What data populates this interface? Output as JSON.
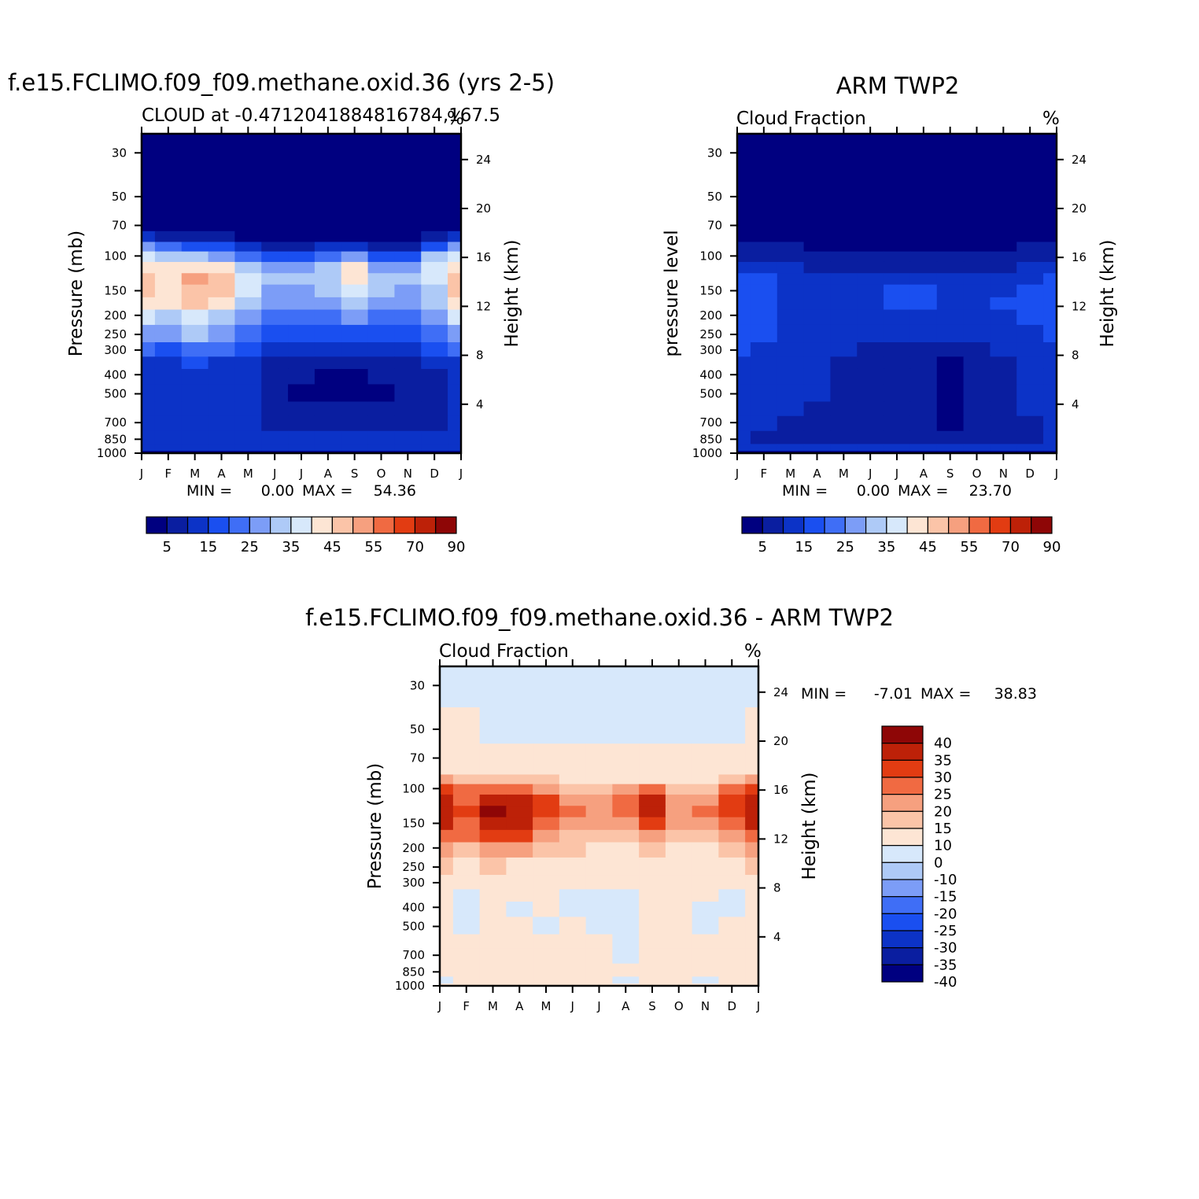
{
  "colors": {
    "abs_scale": [
      "#000080",
      "#0a1ea0",
      "#0c33c7",
      "#1a4ff0",
      "#3f6ef6",
      "#7c9df7",
      "#aecaf7",
      "#d7e8fb",
      "#fde5d4",
      "#fbc4a8",
      "#f6a07f",
      "#f06a42",
      "#e23c12",
      "#bd2108",
      "#8e0606"
    ],
    "diff_scale": [
      "#000080",
      "#0a1ea0",
      "#0c33c7",
      "#1a4ff0",
      "#3f6ef6",
      "#7c9df7",
      "#aecaf7",
      "#d7e8fb",
      "#fde5d4",
      "#fbc4a8",
      "#f6a07f",
      "#f06a42",
      "#e23c12",
      "#bd2108",
      "#8e0606"
    ]
  },
  "chart_data": [
    {
      "type": "heatmap",
      "title": "f.e15.FCLIMO.f09_f09.methane.oxid.36 (yrs 2-5)",
      "subtitle": "CLOUD at -0.4712041884816784,167.5",
      "units": "%",
      "ylabel": "Pressure (mb)",
      "y2label": "Height (km)",
      "months": [
        "J",
        "F",
        "M",
        "A",
        "M",
        "J",
        "J",
        "A",
        "S",
        "O",
        "N",
        "D",
        "J"
      ],
      "pressure_ticks": [
        "30",
        "50",
        "70",
        "100",
        "150",
        "200",
        "250",
        "300",
        "400",
        "500",
        "700",
        "850",
        "1000"
      ],
      "pressure_values": [
        30,
        50,
        70,
        100,
        150,
        200,
        250,
        300,
        400,
        500,
        700,
        850,
        1000
      ],
      "height_ticks": [
        "24",
        "20",
        "16",
        "12",
        "8",
        "4"
      ],
      "height_values": [
        24,
        20,
        16,
        12,
        8,
        4
      ],
      "ylim": [
        1000,
        24
      ],
      "stats": {
        "min_label": "MIN =",
        "min": "0.00",
        "max_label": "MAX =",
        "max": "54.36"
      },
      "levels": [
        5,
        10,
        15,
        20,
        25,
        30,
        35,
        40,
        45,
        50,
        55,
        60,
        70,
        80,
        90
      ],
      "colorbar_labels": [
        "5",
        "15",
        "25",
        "35",
        "45",
        "55",
        "70",
        "90"
      ],
      "levels_pressure": [
        30,
        50,
        70,
        80,
        90,
        100,
        115,
        130,
        150,
        175,
        200,
        250,
        300,
        350,
        400,
        500,
        600,
        700,
        850,
        950,
        1000
      ],
      "grid": [
        [
          0,
          0,
          0,
          0,
          0,
          0,
          0,
          0,
          0,
          0,
          0,
          0,
          0
        ],
        [
          0,
          0,
          0,
          0,
          0,
          0,
          0,
          0,
          0,
          0,
          0,
          0,
          0
        ],
        [
          2,
          1,
          1,
          1,
          1,
          0,
          0,
          0,
          0,
          0,
          0,
          1,
          2
        ],
        [
          12,
          6,
          5,
          5,
          3,
          2,
          2,
          2,
          3,
          2,
          2,
          6,
          12
        ],
        [
          28,
          20,
          18,
          16,
          12,
          9,
          9,
          10,
          12,
          9,
          9,
          18,
          28
        ],
        [
          38,
          33,
          32,
          28,
          22,
          18,
          19,
          22,
          28,
          19,
          18,
          30,
          38
        ],
        [
          44,
          40,
          42,
          40,
          33,
          27,
          28,
          32,
          40,
          28,
          27,
          36,
          44
        ],
        [
          48,
          44,
          50,
          48,
          38,
          30,
          30,
          33,
          44,
          31,
          30,
          36,
          48
        ],
        [
          46,
          42,
          48,
          45,
          36,
          29,
          28,
          30,
          36,
          30,
          28,
          34,
          46
        ],
        [
          44,
          40,
          46,
          42,
          33,
          27,
          26,
          27,
          30,
          28,
          26,
          32,
          44
        ],
        [
          36,
          34,
          38,
          34,
          28,
          24,
          23,
          24,
          26,
          24,
          23,
          28,
          36
        ],
        [
          28,
          26,
          30,
          27,
          22,
          18,
          17,
          18,
          19,
          18,
          17,
          22,
          28
        ],
        [
          20,
          19,
          22,
          20,
          17,
          13,
          12,
          12,
          13,
          12,
          12,
          16,
          20
        ],
        [
          14,
          14,
          15,
          14,
          12,
          9,
          8,
          8,
          9,
          8,
          8,
          11,
          14
        ],
        [
          12,
          11,
          12,
          11,
          10,
          8,
          5,
          3,
          4,
          6,
          7,
          9,
          12
        ],
        [
          11,
          10,
          11,
          11,
          10,
          7,
          4,
          3,
          4,
          3,
          6,
          9,
          11
        ],
        [
          11,
          10,
          11,
          10,
          10,
          8,
          6,
          6,
          7,
          7,
          7,
          9,
          11
        ],
        [
          11,
          10,
          11,
          10,
          10,
          9,
          8,
          8,
          8,
          8,
          8,
          9,
          11
        ],
        [
          12,
          12,
          12,
          11,
          11,
          10,
          10,
          10,
          10,
          10,
          10,
          11,
          12
        ],
        [
          13,
          13,
          13,
          13,
          13,
          13,
          13,
          13,
          13,
          13,
          13,
          13,
          13
        ],
        [
          4,
          4,
          4,
          4,
          4,
          4,
          4,
          4,
          4,
          4,
          4,
          4,
          4
        ]
      ]
    },
    {
      "type": "heatmap",
      "title": "ARM TWP2",
      "subtitle": "Cloud Fraction",
      "units": "%",
      "ylabel": "pressure level",
      "y2label": "Height (km)",
      "months": [
        "J",
        "F",
        "M",
        "A",
        "M",
        "J",
        "J",
        "A",
        "S",
        "O",
        "N",
        "D",
        "J"
      ],
      "pressure_ticks": [
        "30",
        "50",
        "70",
        "100",
        "150",
        "200",
        "250",
        "300",
        "400",
        "500",
        "700",
        "850",
        "1000"
      ],
      "pressure_values": [
        30,
        50,
        70,
        100,
        150,
        200,
        250,
        300,
        400,
        500,
        700,
        850,
        1000
      ],
      "height_ticks": [
        "24",
        "20",
        "16",
        "12",
        "8",
        "4"
      ],
      "height_values": [
        24,
        20,
        16,
        12,
        8,
        4
      ],
      "ylim": [
        1000,
        24
      ],
      "stats": {
        "min_label": "MIN =",
        "min": "0.00",
        "max_label": "MAX =",
        "max": "23.70"
      },
      "levels": [
        5,
        10,
        15,
        20,
        25,
        30,
        35,
        40,
        45,
        50,
        55,
        60,
        70,
        80,
        90
      ],
      "colorbar_labels": [
        "5",
        "15",
        "25",
        "35",
        "45",
        "55",
        "70",
        "90"
      ],
      "levels_pressure": [
        30,
        50,
        70,
        80,
        90,
        100,
        115,
        130,
        150,
        175,
        200,
        250,
        300,
        350,
        400,
        500,
        600,
        700,
        850,
        950,
        1000
      ],
      "grid": [
        [
          0,
          0,
          0,
          0,
          0,
          0,
          0,
          0,
          0,
          0,
          0,
          0,
          0
        ],
        [
          0,
          0,
          0,
          0,
          0,
          0,
          0,
          0,
          0,
          0,
          0,
          0,
          0
        ],
        [
          2,
          1,
          1,
          1,
          1,
          1,
          1,
          1,
          1,
          1,
          1,
          1,
          2
        ],
        [
          4,
          3,
          3,
          3,
          3,
          3,
          3,
          3,
          3,
          3,
          3,
          3,
          4
        ],
        [
          6,
          5,
          5,
          4,
          4,
          4,
          4,
          4,
          4,
          4,
          4,
          5,
          6
        ],
        [
          8,
          7,
          7,
          6,
          5,
          5,
          5,
          5,
          5,
          5,
          6,
          7,
          8
        ],
        [
          13,
          13,
          11,
          9,
          8,
          7,
          8,
          8,
          7,
          8,
          9,
          11,
          13
        ],
        [
          16,
          16,
          13,
          12,
          12,
          12,
          13,
          14,
          10,
          12,
          13,
          14,
          16
        ],
        [
          18,
          19,
          14,
          13,
          14,
          14,
          17,
          15,
          11,
          13,
          14,
          15,
          17
        ],
        [
          18,
          19,
          14,
          13,
          13,
          14,
          17,
          15,
          11,
          13,
          15,
          17,
          17
        ],
        [
          17,
          17,
          14,
          13,
          12,
          12,
          14,
          13,
          11,
          12,
          14,
          16,
          16
        ],
        [
          15,
          15,
          13,
          12,
          11,
          10,
          11,
          11,
          10,
          10,
          12,
          14,
          15
        ],
        [
          15,
          14,
          13,
          12,
          10,
          9,
          9,
          9,
          7,
          8,
          10,
          13,
          14
        ],
        [
          14,
          13,
          12,
          11,
          9,
          8,
          8,
          8,
          4,
          6,
          9,
          12,
          13
        ],
        [
          14,
          13,
          12,
          10,
          9,
          8,
          8,
          7,
          3,
          5,
          8,
          11,
          13
        ],
        [
          13,
          12,
          11,
          10,
          9,
          8,
          7,
          7,
          3,
          5,
          8,
          11,
          12
        ],
        [
          12,
          11,
          10,
          9,
          8,
          7,
          7,
          7,
          3,
          5,
          8,
          10,
          11
        ],
        [
          11,
          10,
          9,
          9,
          8,
          7,
          7,
          7,
          4,
          5,
          7,
          9,
          10
        ],
        [
          10,
          9,
          9,
          9,
          9,
          9,
          9,
          9,
          9,
          9,
          9,
          9,
          10
        ],
        [
          12,
          12,
          12,
          12,
          12,
          12,
          12,
          12,
          12,
          12,
          12,
          12,
          12
        ],
        [
          3,
          3,
          3,
          3,
          3,
          3,
          3,
          3,
          3,
          3,
          3,
          3,
          3
        ]
      ]
    },
    {
      "type": "heatmap",
      "title": "f.e15.FCLIMO.f09_f09.methane.oxid.36 - ARM TWP2",
      "subtitle": "Cloud Fraction",
      "units": "%",
      "ylabel": "Pressure (mb)",
      "y2label": "Height (km)",
      "months": [
        "J",
        "F",
        "M",
        "A",
        "M",
        "J",
        "J",
        "A",
        "S",
        "O",
        "N",
        "D",
        "J"
      ],
      "pressure_ticks": [
        "30",
        "50",
        "70",
        "100",
        "150",
        "200",
        "250",
        "300",
        "400",
        "500",
        "700",
        "850",
        "1000"
      ],
      "pressure_values": [
        30,
        50,
        70,
        100,
        150,
        200,
        250,
        300,
        400,
        500,
        700,
        850,
        1000
      ],
      "height_ticks": [
        "24",
        "20",
        "16",
        "12",
        "8",
        "4"
      ],
      "height_values": [
        24,
        20,
        16,
        12,
        8,
        4
      ],
      "ylim": [
        1000,
        24
      ],
      "stats": {
        "min_label": "MIN =",
        "min": "-7.01",
        "max_label": "MAX =",
        "max": "38.83"
      },
      "levels": [
        -40,
        -35,
        -30,
        -25,
        -20,
        -15,
        -10,
        0,
        10,
        15,
        20,
        25,
        30,
        35,
        40
      ],
      "colorbar_labels": [
        "40",
        "35",
        "30",
        "25",
        "20",
        "15",
        "10",
        "0",
        "-10",
        "-15",
        "-20",
        "-25",
        "-30",
        "-35",
        "-40"
      ],
      "levels_pressure": [
        30,
        50,
        70,
        80,
        90,
        100,
        115,
        130,
        150,
        175,
        200,
        250,
        300,
        350,
        400,
        500,
        600,
        700,
        850,
        950,
        1000
      ],
      "grid": [
        [
          -1,
          -1,
          -1,
          -1,
          -1,
          -1,
          -1,
          -1,
          -1,
          -1,
          -1,
          -1,
          -1
        ],
        [
          2,
          2,
          -1,
          -1,
          -1,
          -1,
          -1,
          -1,
          -1,
          -1,
          -1,
          -1,
          2
        ],
        [
          3,
          3,
          2,
          1,
          1,
          1,
          1,
          1,
          1,
          1,
          1,
          2,
          3
        ],
        [
          9,
          8,
          6,
          5,
          5,
          4,
          4,
          4,
          5,
          4,
          4,
          6,
          9
        ],
        [
          16,
          14,
          13,
          12,
          10,
          6,
          6,
          8,
          9,
          6,
          6,
          10,
          16
        ],
        [
          25,
          20,
          23,
          22,
          17,
          12,
          12,
          17,
          22,
          12,
          13,
          20,
          25
        ],
        [
          30,
          24,
          31,
          30,
          25,
          18,
          18,
          22,
          32,
          18,
          19,
          26,
          32
        ],
        [
          32,
          25,
          36,
          34,
          25,
          20,
          18,
          22,
          34,
          18,
          20,
          27,
          34
        ],
        [
          30,
          24,
          33,
          31,
          22,
          17,
          15,
          18,
          26,
          15,
          16,
          22,
          30
        ],
        [
          24,
          20,
          28,
          25,
          18,
          14,
          12,
          14,
          18,
          12,
          13,
          18,
          24
        ],
        [
          16,
          14,
          18,
          15,
          12,
          10,
          8,
          9,
          12,
          8,
          8,
          13,
          16
        ],
        [
          10,
          8,
          10,
          8,
          7,
          5,
          4,
          4,
          5,
          4,
          4,
          8,
          12
        ],
        [
          4,
          3,
          6,
          5,
          3,
          2,
          2,
          2,
          3,
          2,
          2,
          4,
          6
        ],
        [
          1,
          -1,
          2,
          2,
          1,
          -1,
          -1,
          -1,
          1,
          2,
          2,
          -1,
          2
        ],
        [
          1,
          -1,
          1,
          -1,
          1,
          -1,
          -1,
          -1,
          1,
          2,
          -1,
          -1,
          1
        ],
        [
          1,
          -1,
          1,
          1,
          -1,
          1,
          -1,
          -1,
          1,
          2,
          -1,
          1,
          1
        ],
        [
          1,
          1,
          1,
          1,
          1,
          1,
          1,
          -1,
          2,
          2,
          1,
          1,
          1
        ],
        [
          1,
          1,
          1,
          1,
          1,
          1,
          1,
          -1,
          1,
          1,
          1,
          1,
          1
        ],
        [
          1,
          1,
          1,
          1,
          1,
          1,
          1,
          1,
          1,
          1,
          1,
          1,
          1
        ],
        [
          -1,
          1,
          1,
          1,
          1,
          1,
          1,
          -1,
          1,
          1,
          -1,
          1,
          1
        ],
        [
          1,
          1,
          1,
          1,
          1,
          1,
          1,
          1,
          1,
          1,
          1,
          1,
          1
        ]
      ]
    }
  ]
}
